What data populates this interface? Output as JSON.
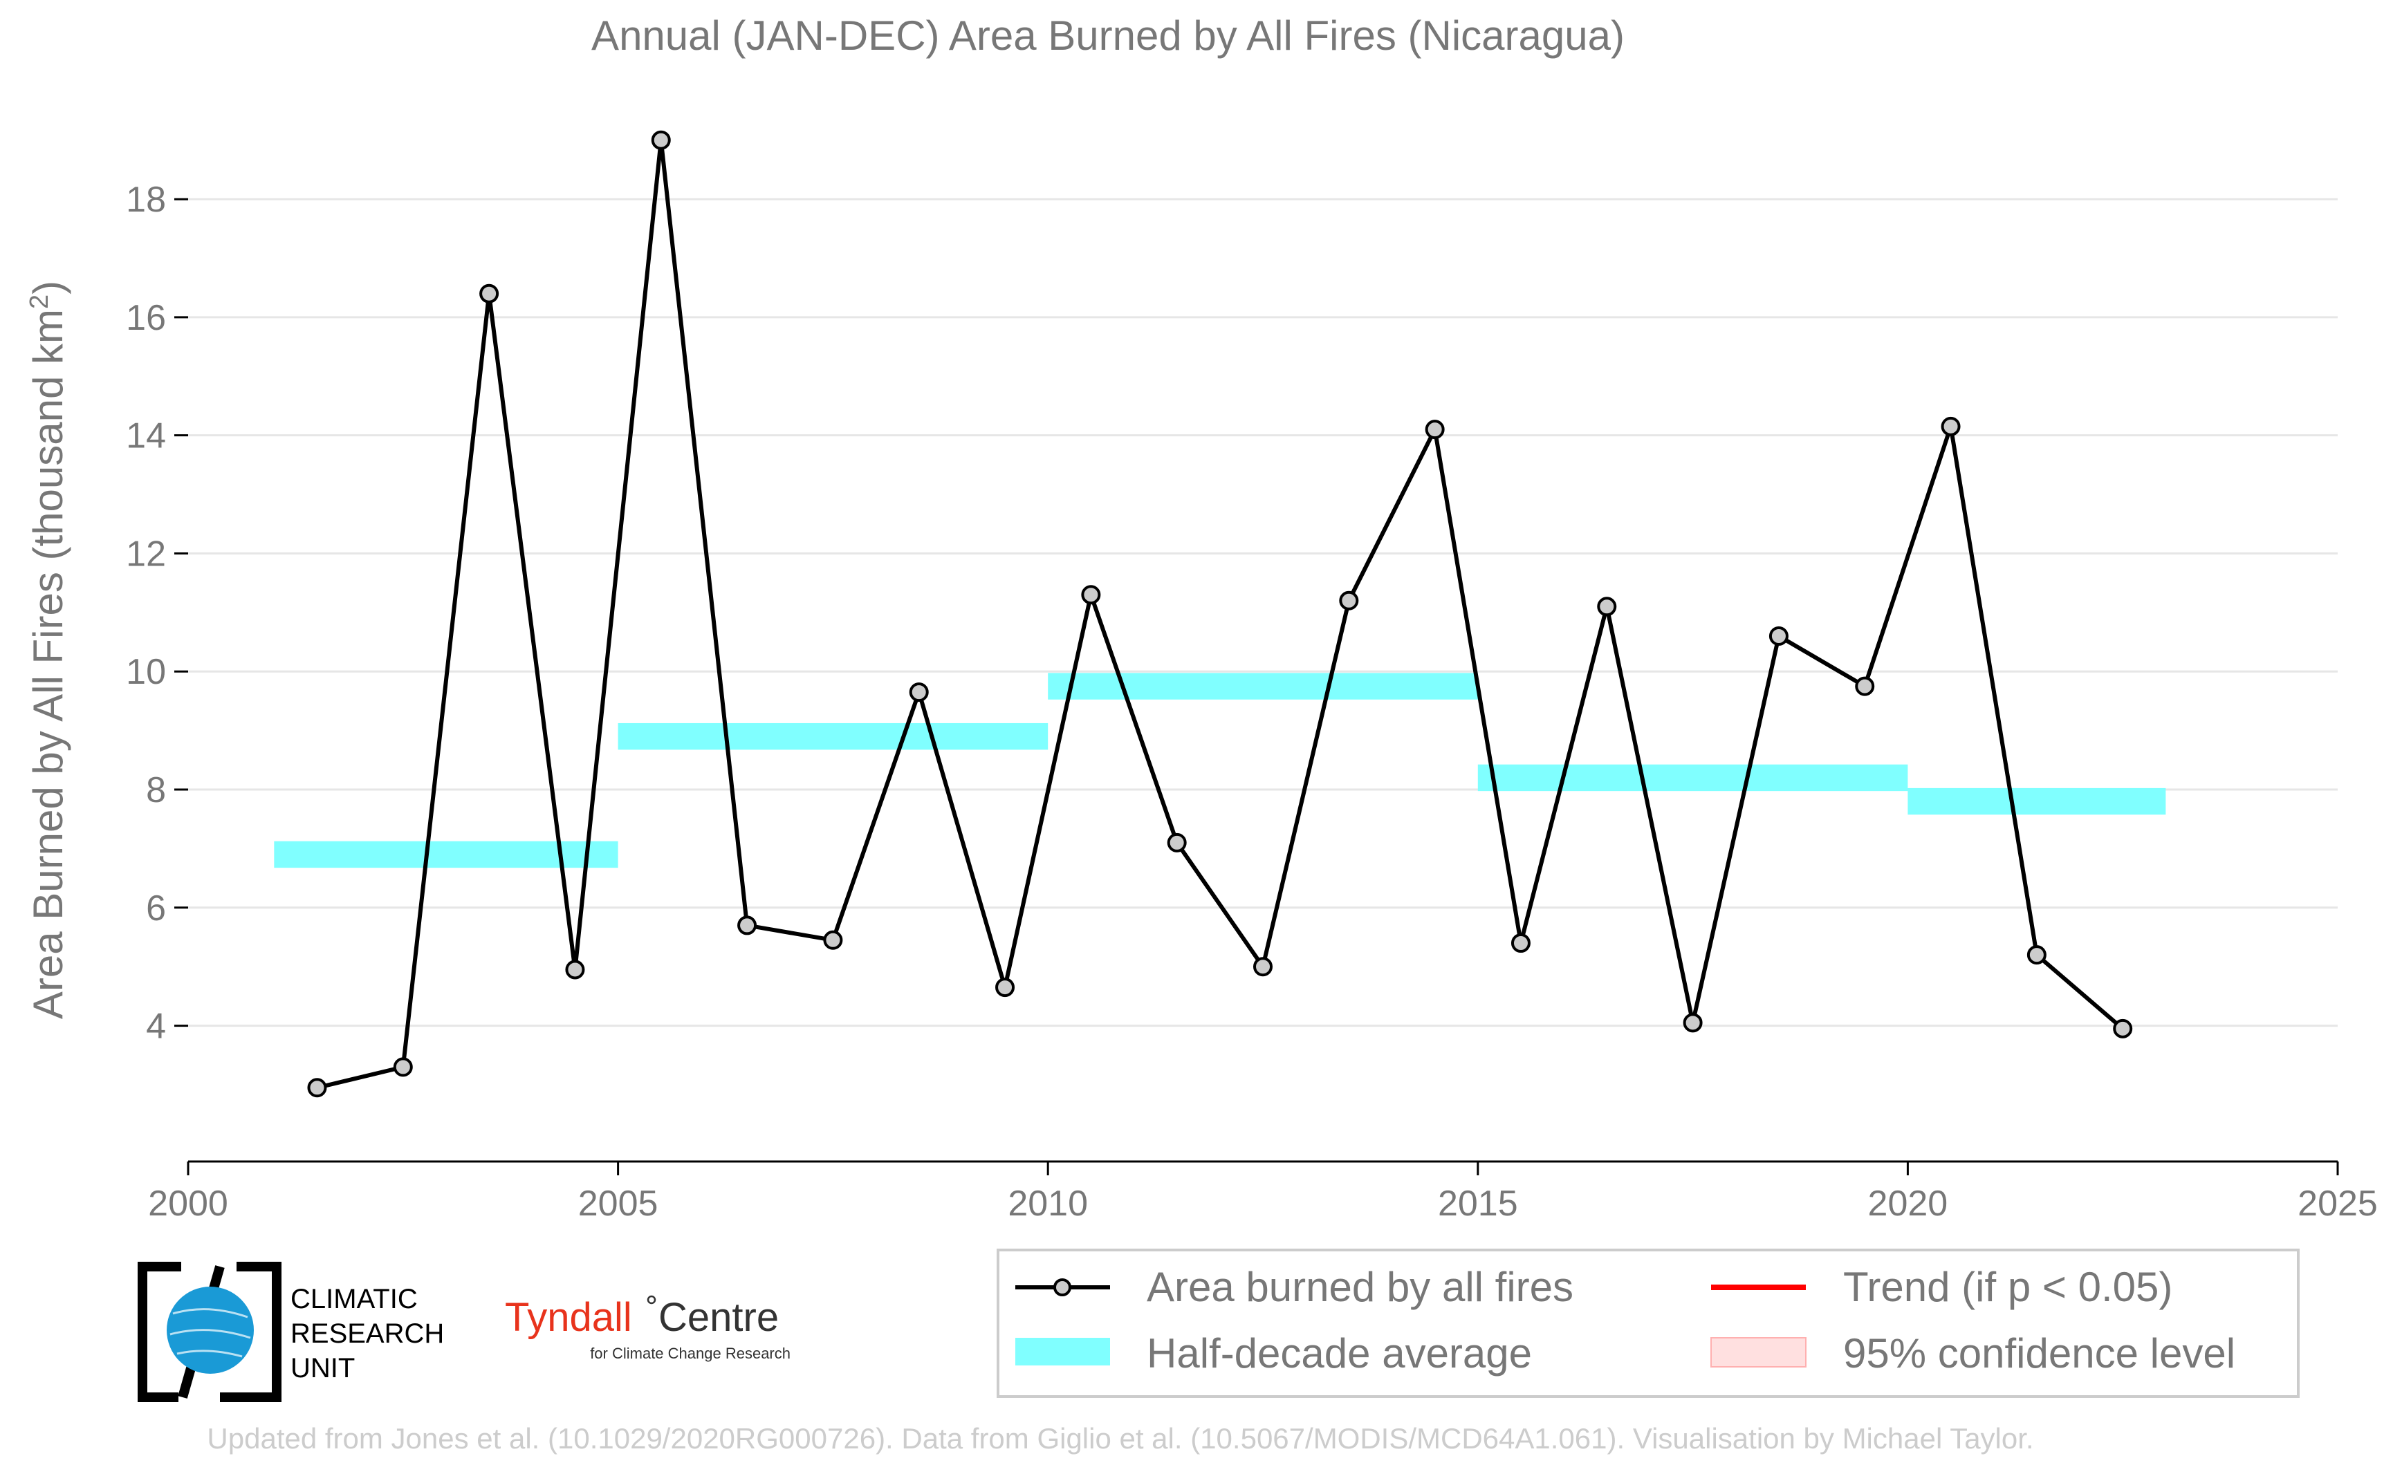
{
  "chart_data": {
    "type": "line",
    "title": "Annual (JAN-DEC) Area Burned by All Fires (Nicaragua)",
    "ylabel": "Area Burned by All Fires (thousand km",
    "ylabel_sup": "2",
    "ylabel_close": ")",
    "xlabel": "",
    "xlim": [
      2000,
      2025
    ],
    "ylim": [
      1.7,
      19.5
    ],
    "xticks": [
      2000,
      2005,
      2010,
      2015,
      2020,
      2025
    ],
    "yticks": [
      4,
      6,
      8,
      10,
      12,
      14,
      16,
      18
    ],
    "grid": "horizontal",
    "series": [
      {
        "name": "Area burned by all fires",
        "color": "#000000",
        "marker_fill": "#cccccc",
        "x": [
          2001.5,
          2002.5,
          2003.5,
          2004.5,
          2005.5,
          2006.5,
          2007.5,
          2008.5,
          2009.5,
          2010.5,
          2011.5,
          2012.5,
          2013.5,
          2014.5,
          2015.5,
          2016.5,
          2017.5,
          2018.5,
          2019.5,
          2020.5,
          2021.5,
          2022.5
        ],
        "y": [
          2.95,
          3.3,
          16.4,
          4.95,
          19.0,
          5.7,
          5.45,
          9.65,
          4.65,
          11.3,
          7.1,
          5.0,
          11.2,
          14.1,
          5.4,
          11.1,
          4.05,
          10.6,
          9.75,
          14.15,
          5.2,
          3.95
        ]
      }
    ],
    "half_decade_average": {
      "name": "Half-decade average",
      "color": "#80ffff",
      "segments": [
        {
          "x0": 2001,
          "x1": 2005,
          "y": 6.9
        },
        {
          "x0": 2005,
          "x1": 2010,
          "y": 8.9
        },
        {
          "x0": 2010,
          "x1": 2015,
          "y": 9.75
        },
        {
          "x0": 2015,
          "x1": 2020,
          "y": 8.2
        },
        {
          "x0": 2020,
          "x1": 2023,
          "y": 7.8
        }
      ]
    },
    "legend": {
      "placement": "bottom-right",
      "entries": [
        {
          "label": "Area burned by all fires",
          "kind": "line-marker",
          "color": "#000000"
        },
        {
          "label": "Trend (if p < 0.05)",
          "kind": "line",
          "color": "#ff0000"
        },
        {
          "label": "Half-decade average",
          "kind": "band",
          "color": "#80ffff"
        },
        {
          "label": "95% confidence level",
          "kind": "band",
          "color": "#ffe0e0"
        }
      ]
    }
  },
  "logos": {
    "cru_line1": "CLIMATIC",
    "cru_line2": "RESEARCH",
    "cru_line3": "UNIT",
    "tyndall_name": "Tyndall",
    "tyndall_centre": "Centre",
    "tyndall_sub": "for Climate Change Research",
    "tyndall_color": "#e8331c"
  },
  "footer": "Updated from Jones et al. (10.1029/2020RG000726). Data from Giglio et al. (10.5067/MODIS/MCD64A1.061). Visualisation by Michael Taylor."
}
